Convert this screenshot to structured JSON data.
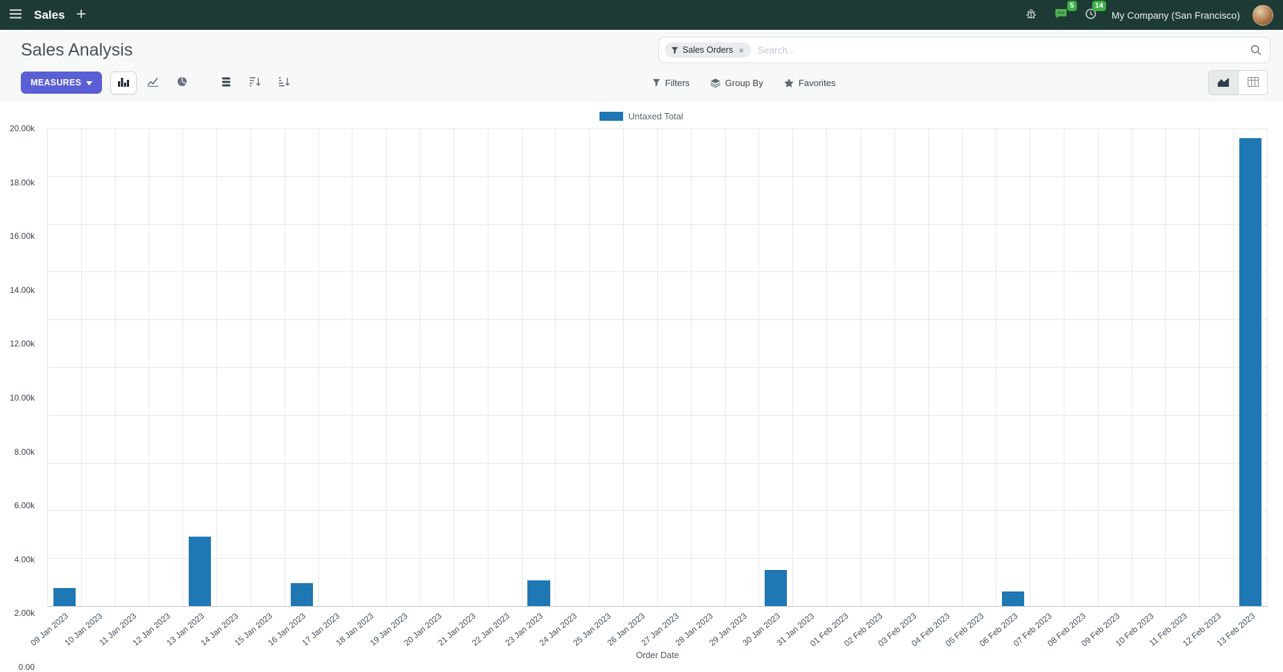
{
  "navbar": {
    "app_name": "Sales",
    "company": "My Company (San Francisco)",
    "messages_badge": "5",
    "activities_badge": "14"
  },
  "control_panel": {
    "breadcrumb": "Sales Analysis",
    "search": {
      "facet": "Sales Orders",
      "facet_remove": "×",
      "placeholder": "Search..."
    },
    "measures_label": "MEASURES",
    "filters_label": "Filters",
    "groupby_label": "Group By",
    "favorites_label": "Favorites"
  },
  "icons": {
    "menu": "hamburger",
    "add": "plus",
    "debug": "bug",
    "messages": "chat-bubble",
    "activities": "clock",
    "search": "magnifier",
    "facet": "funnel",
    "filters": "funnel",
    "group_by": "layers",
    "favorites": "star",
    "measures_caret": "caret-down",
    "chart_types": [
      "bar-chart",
      "line-chart",
      "pie-chart"
    ],
    "extra_tools": [
      "stack",
      "sort-descending",
      "sort-ascending"
    ],
    "view_switcher": [
      "area-chart",
      "table-grid"
    ]
  },
  "colors": {
    "navbar_bg": "#1e3a34",
    "primary_button": "#5b5fd6",
    "bar": "#1f77b4",
    "badge": "#3fae46"
  },
  "chart_data": {
    "type": "bar",
    "title": "",
    "xlabel": "Order Date",
    "ylabel": "",
    "ylim": [
      0,
      20000
    ],
    "ytick_step": 2000,
    "ytick_labels": [
      "0.00",
      "2.00k",
      "4.00k",
      "6.00k",
      "8.00k",
      "10.00k",
      "12.00k",
      "14.00k",
      "16.00k",
      "18.00k",
      "20.00k"
    ],
    "grid": true,
    "legend_position": "top",
    "categories": [
      "09 Jan 2023",
      "10 Jan 2023",
      "11 Jan 2023",
      "12 Jan 2023",
      "13 Jan 2023",
      "14 Jan 2023",
      "15 Jan 2023",
      "16 Jan 2023",
      "17 Jan 2023",
      "18 Jan 2023",
      "19 Jan 2023",
      "20 Jan 2023",
      "21 Jan 2023",
      "22 Jan 2023",
      "23 Jan 2023",
      "24 Jan 2023",
      "25 Jan 2023",
      "26 Jan 2023",
      "27 Jan 2023",
      "28 Jan 2023",
      "29 Jan 2023",
      "30 Jan 2023",
      "31 Jan 2023",
      "01 Feb 2023",
      "02 Feb 2023",
      "03 Feb 2023",
      "04 Feb 2023",
      "05 Feb 2023",
      "06 Feb 2023",
      "07 Feb 2023",
      "08 Feb 2023",
      "09 Feb 2023",
      "10 Feb 2023",
      "11 Feb 2023",
      "12 Feb 2023",
      "13 Feb 2023"
    ],
    "series": [
      {
        "name": "Untaxed Total",
        "color": "#1f77b4",
        "values": [
          750,
          0,
          0,
          0,
          2900,
          0,
          0,
          950,
          0,
          0,
          0,
          0,
          0,
          0,
          1080,
          0,
          0,
          0,
          0,
          0,
          0,
          1500,
          0,
          0,
          0,
          0,
          0,
          0,
          620,
          0,
          0,
          0,
          0,
          0,
          0,
          19600
        ]
      }
    ]
  }
}
